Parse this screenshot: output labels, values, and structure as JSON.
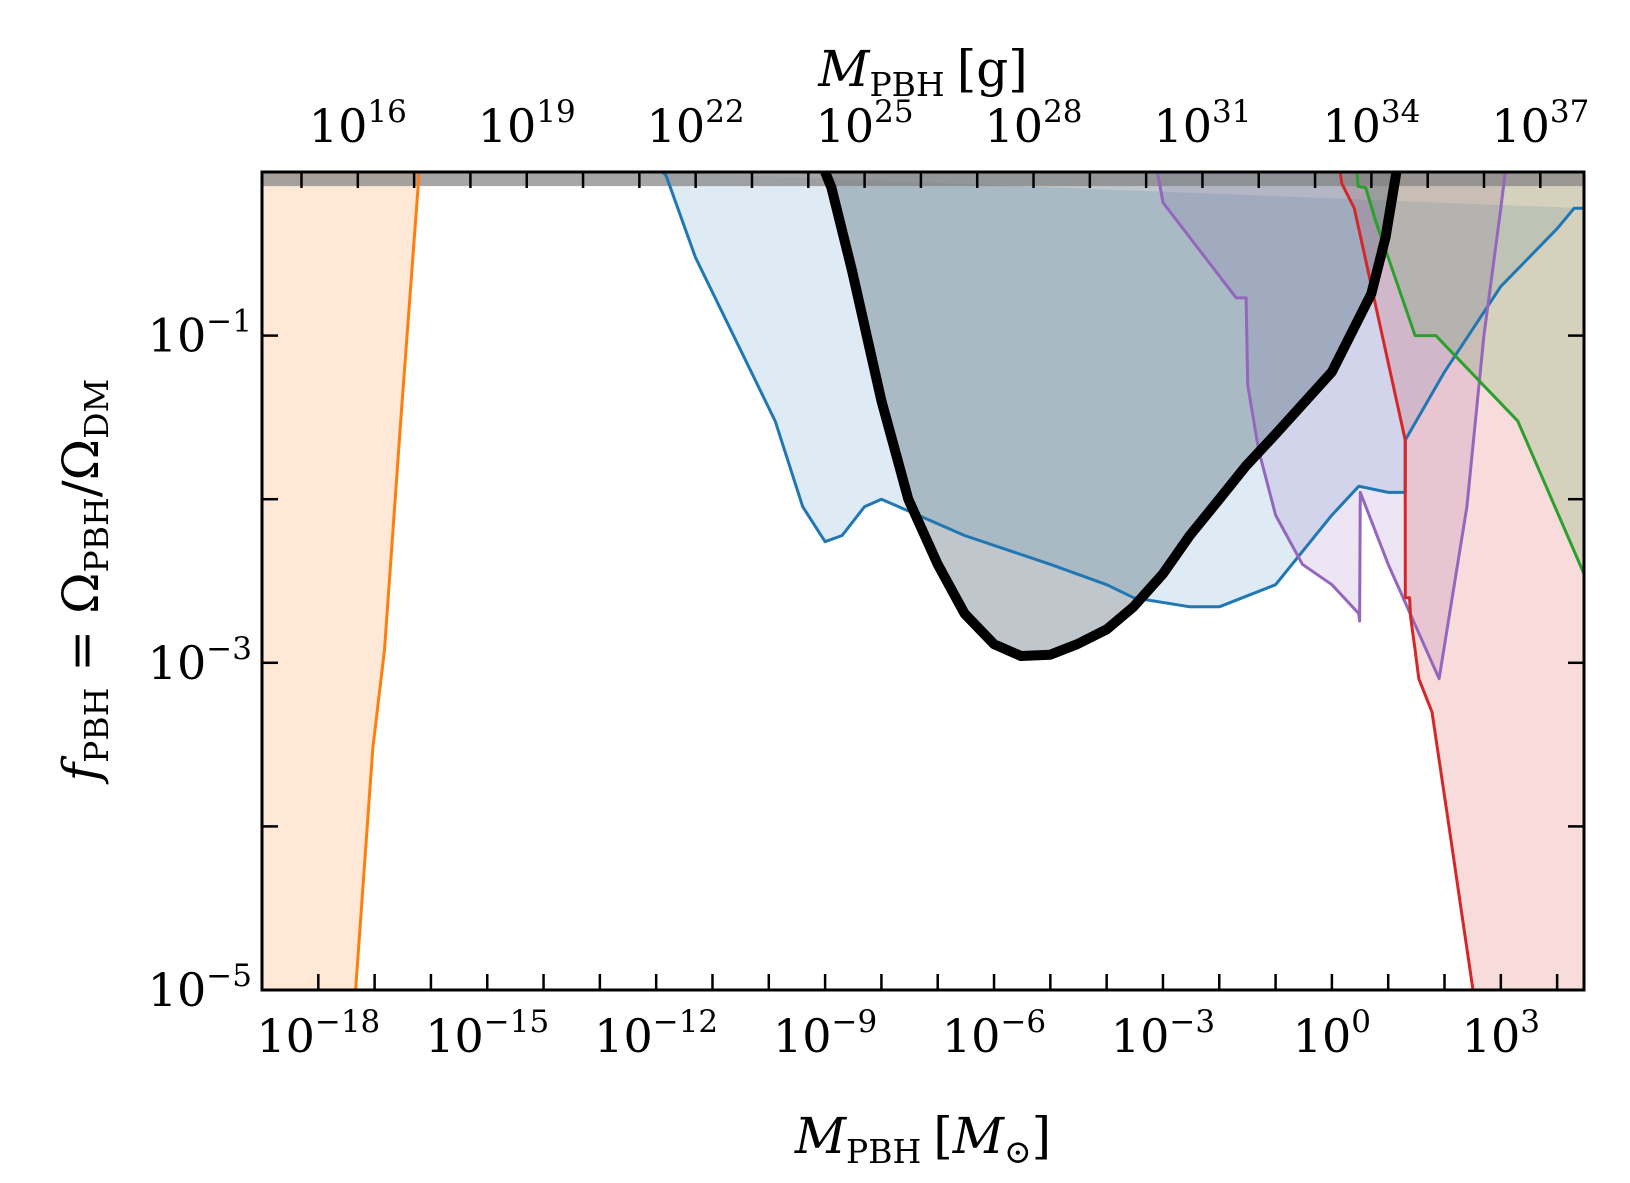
{
  "chart_data": {
    "type": "area",
    "x_scale": "log",
    "y_scale": "log",
    "xlim": [
      1e-19,
      30000
    ],
    "ylim": [
      1e-05,
      1
    ],
    "xlabel": {
      "main": "M",
      "sub": "PBH",
      "unit_open": "[",
      "unit": "M",
      "unit_sub": "⊙",
      "unit_close": "]"
    },
    "ylabel": {
      "text": "f",
      "sub": "PBH",
      "mid": " = Ω",
      "sub2": "PBH",
      "mid2": "/Ω",
      "sub3": "DM"
    },
    "top_xlabel": {
      "main": "M",
      "sub": "PBH",
      "unit": "[g]"
    },
    "x_ticks": [
      {
        "base": "10",
        "exp": "−18",
        "value": 1e-18
      },
      {
        "base": "10",
        "exp": "−15",
        "value": 1e-15
      },
      {
        "base": "10",
        "exp": "−12",
        "value": 1e-12
      },
      {
        "base": "10",
        "exp": "−9",
        "value": 1e-09
      },
      {
        "base": "10",
        "exp": "−6",
        "value": 1e-06
      },
      {
        "base": "10",
        "exp": "−3",
        "value": 0.001
      },
      {
        "base": "10",
        "exp": "0",
        "value": 1
      },
      {
        "base": "10",
        "exp": "3",
        "value": 1000
      }
    ],
    "x_top_ticks": [
      {
        "base": "10",
        "exp": "16",
        "value": 1e+16
      },
      {
        "base": "10",
        "exp": "19",
        "value": 1e+19
      },
      {
        "base": "10",
        "exp": "22",
        "value": 1e+22
      },
      {
        "base": "10",
        "exp": "25",
        "value": 1e+25
      },
      {
        "base": "10",
        "exp": "28",
        "value": 1e+28
      },
      {
        "base": "10",
        "exp": "31",
        "value": 1e+31
      },
      {
        "base": "10",
        "exp": "34",
        "value": 1e+34
      },
      {
        "base": "10",
        "exp": "37",
        "value": 1e+37
      }
    ],
    "y_ticks": [
      {
        "base": "10",
        "exp": "−5",
        "value": 1e-05
      },
      {
        "base": "10",
        "exp": "−3",
        "value": 0.001
      },
      {
        "base": "10",
        "exp": "−1",
        "value": 0.1
      }
    ],
    "top_band": {
      "y_from": 0.82,
      "y_to": 1,
      "color": "#808080",
      "opacity": 0.7
    },
    "series": [
      {
        "color": "#ff7f0e",
        "fill_opacity": 0.17,
        "fill_side": "left",
        "x": [
          4.6e-18,
          9.3e-18,
          1.5e-17,
          2.9e-17,
          6.2e-17
        ],
        "y": [
          1e-05,
          0.0003,
          0.0012,
          0.03,
          1
        ]
      },
      {
        "color": "#1f77b4",
        "fill_opacity": 0.15,
        "x": [
          1.3e-12,
          1.5e-12,
          5e-12,
          1.3e-10,
          4e-10,
          1e-09,
          2e-09,
          5e-09,
          1e-08,
          3e-07,
          1e-05,
          0.0001,
          0.0003,
          0.003,
          0.01,
          0.1,
          1,
          3,
          10,
          20,
          20.1,
          100,
          1000.0,
          10000.0,
          20000.0,
          30000.0
        ],
        "y": [
          1,
          0.95,
          0.3,
          0.03,
          0.009,
          0.0055,
          0.006,
          0.009,
          0.01,
          0.006,
          0.004,
          0.003,
          0.0025,
          0.0022,
          0.0022,
          0.003,
          0.008,
          0.012,
          0.011,
          0.011,
          0.023,
          0.06,
          0.2,
          0.45,
          0.6,
          0.6
        ]
      },
      {
        "color": "#9467bd",
        "fill_opacity": 0.17,
        "x": [
          0.0008,
          0.001,
          0.02,
          0.03,
          0.032,
          0.05,
          0.1,
          0.3,
          1,
          3,
          3.1,
          3.2,
          10,
          80,
          250,
          500,
          1000,
          1200
        ],
        "y": [
          1,
          0.65,
          0.17,
          0.17,
          0.05,
          0.02,
          0.008,
          0.004,
          0.003,
          0.002,
          0.0018,
          0.011,
          0.004,
          0.0008,
          0.009,
          0.1,
          0.6,
          1
        ]
      },
      {
        "color": "#d62728",
        "fill_opacity": 0.17,
        "fill_side": "right",
        "x": [
          1.4,
          1.5,
          2.5,
          20,
          20.1,
          24,
          25,
          30,
          35,
          60,
          120,
          200,
          320
        ],
        "y": [
          1,
          0.85,
          0.6,
          0.023,
          0.0025,
          0.0025,
          0.0019,
          0.0012,
          0.0008,
          0.0005,
          0.0001,
          3e-05,
          1e-05
        ]
      },
      {
        "color": "#2ca02c",
        "fill_opacity": 0.17,
        "fill_side": "right",
        "x": [
          2.8,
          2.9,
          4,
          6,
          30,
          70,
          2000,
          30000
        ],
        "y": [
          1,
          0.82,
          0.8,
          0.5,
          0.1,
          0.1,
          0.03,
          0.0035
        ]
      },
      {
        "color": "#000000",
        "fill": "#485f6e",
        "fill_opacity": 0.35,
        "line_width": 10,
        "x": [
          1e-09,
          1.3e-09,
          3e-09,
          1e-08,
          3e-08,
          1e-07,
          3e-07,
          1e-06,
          3e-06,
          1e-05,
          3e-05,
          0.0001,
          0.0003,
          0.001,
          0.003,
          0.01,
          0.03,
          0.1,
          1,
          5,
          9,
          14
        ],
        "y": [
          1,
          0.8,
          0.25,
          0.04,
          0.01,
          0.004,
          0.002,
          0.0013,
          0.0011,
          0.00112,
          0.0013,
          0.0016,
          0.0022,
          0.0035,
          0.006,
          0.01,
          0.016,
          0.025,
          0.06,
          0.18,
          0.4,
          1
        ]
      }
    ]
  }
}
